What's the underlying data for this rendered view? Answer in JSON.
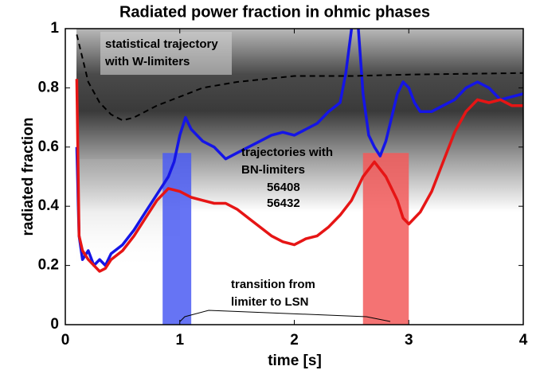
{
  "chart_data": {
    "type": "line",
    "title": "Radiated power fraction in ohmic phases",
    "x_label": "time [s]",
    "y_label": "radiated fraction",
    "xlim": [
      0,
      4
    ],
    "ylim": [
      0,
      1
    ],
    "xticks": [
      0,
      1,
      2,
      3,
      4
    ],
    "yticks": [
      0,
      0.2,
      0.4,
      0.6,
      0.8,
      1
    ],
    "series": [
      {
        "name": "56408",
        "color": "#1515e6",
        "x": [
          0.1,
          0.12,
          0.15,
          0.2,
          0.25,
          0.3,
          0.35,
          0.4,
          0.5,
          0.6,
          0.7,
          0.8,
          0.85,
          0.9,
          0.95,
          1.0,
          1.05,
          1.1,
          1.2,
          1.3,
          1.4,
          1.5,
          1.6,
          1.7,
          1.8,
          1.9,
          2.0,
          2.1,
          2.2,
          2.3,
          2.4,
          2.45,
          2.5,
          2.55,
          2.6,
          2.65,
          2.7,
          2.75,
          2.8,
          2.85,
          2.9,
          2.95,
          3.0,
          3.05,
          3.1,
          3.2,
          3.3,
          3.4,
          3.5,
          3.6,
          3.7,
          3.8,
          3.9,
          4.0
        ],
        "values": [
          0.6,
          0.3,
          0.22,
          0.25,
          0.2,
          0.22,
          0.2,
          0.24,
          0.27,
          0.32,
          0.38,
          0.44,
          0.47,
          0.5,
          0.55,
          0.64,
          0.7,
          0.66,
          0.62,
          0.6,
          0.56,
          0.58,
          0.6,
          0.62,
          0.64,
          0.65,
          0.64,
          0.66,
          0.68,
          0.72,
          0.75,
          0.85,
          1.0,
          1.05,
          0.78,
          0.64,
          0.6,
          0.57,
          0.62,
          0.7,
          0.78,
          0.82,
          0.8,
          0.75,
          0.72,
          0.72,
          0.74,
          0.76,
          0.8,
          0.82,
          0.8,
          0.76,
          0.77,
          0.78
        ]
      },
      {
        "name": "56432",
        "color": "#e61515",
        "x": [
          0.1,
          0.12,
          0.15,
          0.2,
          0.25,
          0.3,
          0.35,
          0.4,
          0.5,
          0.6,
          0.7,
          0.8,
          0.9,
          1.0,
          1.1,
          1.2,
          1.3,
          1.4,
          1.5,
          1.6,
          1.7,
          1.8,
          1.9,
          2.0,
          2.1,
          2.2,
          2.3,
          2.4,
          2.5,
          2.6,
          2.7,
          2.8,
          2.9,
          2.95,
          3.0,
          3.1,
          3.2,
          3.3,
          3.4,
          3.5,
          3.6,
          3.7,
          3.8,
          3.9,
          4.0
        ],
        "values": [
          0.83,
          0.3,
          0.25,
          0.22,
          0.2,
          0.18,
          0.19,
          0.22,
          0.25,
          0.3,
          0.36,
          0.42,
          0.46,
          0.45,
          0.43,
          0.42,
          0.41,
          0.41,
          0.39,
          0.36,
          0.33,
          0.3,
          0.28,
          0.27,
          0.29,
          0.3,
          0.33,
          0.37,
          0.42,
          0.5,
          0.55,
          0.5,
          0.42,
          0.36,
          0.34,
          0.38,
          0.45,
          0.55,
          0.65,
          0.72,
          0.76,
          0.75,
          0.76,
          0.74,
          0.74
        ]
      },
      {
        "color": "#000000",
        "dashed": true,
        "x": [
          0.1,
          0.15,
          0.2,
          0.3,
          0.4,
          0.5,
          0.6,
          0.8,
          1.0,
          1.2,
          1.5,
          2.0,
          2.5,
          3.0,
          4.0
        ],
        "values": [
          0.98,
          0.9,
          0.82,
          0.75,
          0.71,
          0.69,
          0.7,
          0.74,
          0.77,
          0.8,
          0.82,
          0.84,
          0.84,
          0.845,
          0.85
        ]
      }
    ],
    "regions": [
      {
        "x": [
          0.85,
          1.1
        ],
        "y": [
          0,
          0.58
        ],
        "color": "#4b5cf2"
      },
      {
        "x": [
          2.6,
          3.0
        ],
        "y": [
          0,
          0.58
        ],
        "color": "#f25a5a"
      }
    ],
    "annotations": {
      "statistical": [
        "statistical trajectory",
        "with W-limiters"
      ],
      "bn": [
        "trajectories with",
        "BN-limiters"
      ],
      "transition": [
        "transition from",
        "limiter to LSN"
      ]
    }
  }
}
